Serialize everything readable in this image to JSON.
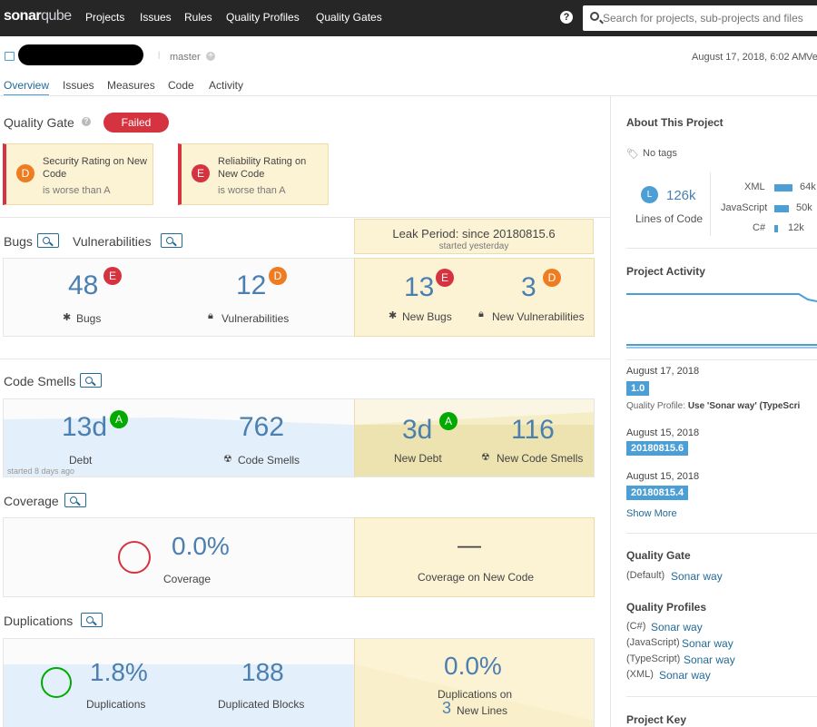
{
  "nav": {
    "logo_main": "sonar",
    "logo_sub": "qube",
    "items": [
      "Projects",
      "Issues",
      "Rules",
      "Quality Profiles",
      "Quality Gates"
    ],
    "help_icon": "?",
    "search_placeholder": "Search for projects, sub-projects and files"
  },
  "project": {
    "branch": "master",
    "analysis_date": "August 17, 2018, 6:02 AM",
    "version_cut": "Ve",
    "tabs": [
      "Overview",
      "Issues",
      "Measures",
      "Code",
      "Activity"
    ]
  },
  "quality_gate": {
    "title": "Quality Gate",
    "status": "Failed",
    "conditions": [
      {
        "rating": "D",
        "line1": "Security Rating on New",
        "line2": "Code",
        "sub": "is worse than A"
      },
      {
        "rating": "E",
        "line1": "Reliability Rating on",
        "line2": "New Code",
        "sub": "is worse than A"
      }
    ]
  },
  "leak": {
    "title": "Leak Period: since 20180815.6",
    "sub": "started yesterday"
  },
  "bugs_vulns": {
    "title_bugs": "Bugs",
    "title_vulns": "Vulnerabilities",
    "bugs": {
      "value": "48",
      "rating": "E",
      "label": "Bugs"
    },
    "vulns": {
      "value": "12",
      "rating": "D",
      "label": "Vulnerabilities"
    },
    "new_bugs": {
      "value": "13",
      "rating": "E",
      "label": "New Bugs"
    },
    "new_vulns": {
      "value": "3",
      "rating": "D",
      "label": "New Vulnerabilities"
    }
  },
  "code_smells": {
    "title": "Code Smells",
    "debt": {
      "value": "13d",
      "rating": "A",
      "label": "Debt"
    },
    "smells": {
      "value": "762",
      "label": "Code Smells"
    },
    "started": "started 8 days ago",
    "new_debt": {
      "value": "3d",
      "rating": "A",
      "label": "New Debt"
    },
    "new_smells": {
      "value": "116",
      "label": "New Code Smells"
    }
  },
  "coverage": {
    "title": "Coverage",
    "value": "0.0%",
    "label": "Coverage",
    "new_value": "—",
    "new_label": "Coverage on New Code"
  },
  "duplications": {
    "title": "Duplications",
    "value": "1.8%",
    "label": "Duplications",
    "blocks": "188",
    "blocks_label": "Duplicated Blocks",
    "new_value": "0.0%",
    "new_label": "Duplications on",
    "new_lines": "3",
    "new_lines_label": "New Lines"
  },
  "about": {
    "title": "About This Project",
    "tags": "No tags",
    "loc_badge": "L",
    "loc_value": "126k",
    "loc_label": "Lines of Code",
    "languages": [
      {
        "name": "XML",
        "value": "64k",
        "share": 0.51
      },
      {
        "name": "JavaScript",
        "value": "50k",
        "share": 0.4
      },
      {
        "name": "C#",
        "value": "12k",
        "share": 0.1
      }
    ]
  },
  "activity": {
    "title": "Project Activity",
    "events": [
      {
        "date": "August 17, 2018",
        "version": "1.0",
        "note_prefix": "Quality Profile: ",
        "note": "Use 'Sonar way' (TypeScri"
      },
      {
        "date": "August 15, 2018",
        "version": "20180815.6"
      },
      {
        "date": "August 15, 2018",
        "version": "20180815.4"
      }
    ],
    "show_more": "Show More"
  },
  "qg_side": {
    "title": "Quality Gate",
    "prefix": "(Default)",
    "link": "Sonar way"
  },
  "profiles": {
    "title": "Quality Profiles",
    "items": [
      {
        "lang": "(C#)",
        "name": "Sonar way"
      },
      {
        "lang": "(JavaScript)",
        "name": "Sonar way"
      },
      {
        "lang": "(TypeScript)",
        "name": "Sonar way"
      },
      {
        "lang": "(XML)",
        "name": "Sonar way"
      }
    ]
  },
  "project_key_title": "Project Key",
  "colors": {
    "accent": "#4b9fd5",
    "failed": "#d4333f",
    "leak": "#fcf3d5",
    "rating_a": "#00aa00",
    "rating_d": "#ed7d20",
    "rating_e": "#d4333f"
  }
}
